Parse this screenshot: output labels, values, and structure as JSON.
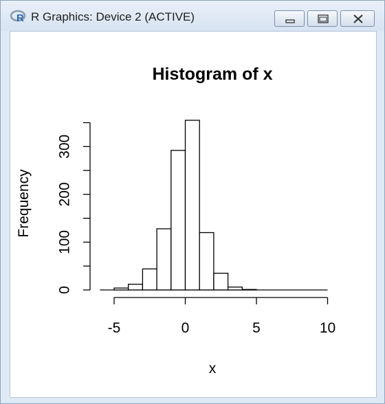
{
  "window": {
    "title": "R Graphics: Device 2 (ACTIVE)",
    "icons": {
      "app": "r-logo-icon",
      "minimize": "minimize-icon",
      "maximize": "maximize-icon",
      "close": "close-icon"
    }
  },
  "chart_data": {
    "type": "bar",
    "title": "Histogram of x",
    "xlabel": "x",
    "ylabel": "Frequency",
    "bins": [
      {
        "from": -5,
        "to": -4,
        "value": 4
      },
      {
        "from": -4,
        "to": -3,
        "value": 12
      },
      {
        "from": -3,
        "to": -2,
        "value": 44
      },
      {
        "from": -2,
        "to": -1,
        "value": 128
      },
      {
        "from": -1,
        "to": 0,
        "value": 292
      },
      {
        "from": 0,
        "to": 1,
        "value": 355
      },
      {
        "from": 1,
        "to": 2,
        "value": 120
      },
      {
        "from": 2,
        "to": 3,
        "value": 35
      },
      {
        "from": 3,
        "to": 4,
        "value": 6
      },
      {
        "from": 4,
        "to": 5,
        "value": 1
      },
      {
        "from": 5,
        "to": 6,
        "value": 0
      },
      {
        "from": 6,
        "to": 7,
        "value": 0
      },
      {
        "from": 7,
        "to": 8,
        "value": 0
      },
      {
        "from": 8,
        "to": 9,
        "value": 0
      },
      {
        "from": 9,
        "to": 10,
        "value": 0
      }
    ],
    "x_ticks": [
      -5,
      0,
      5,
      10
    ],
    "x_tick_labels": [
      "-5",
      "0",
      "5",
      "10"
    ],
    "y_ticks": [
      0,
      100,
      200,
      300
    ],
    "y_tick_labels": [
      "0",
      "100",
      "200",
      "300"
    ],
    "xlim": [
      -6,
      10
    ],
    "ylim": [
      0,
      355
    ],
    "grid": false,
    "bar_fill": "#ffffff",
    "bar_stroke": "#000000"
  }
}
